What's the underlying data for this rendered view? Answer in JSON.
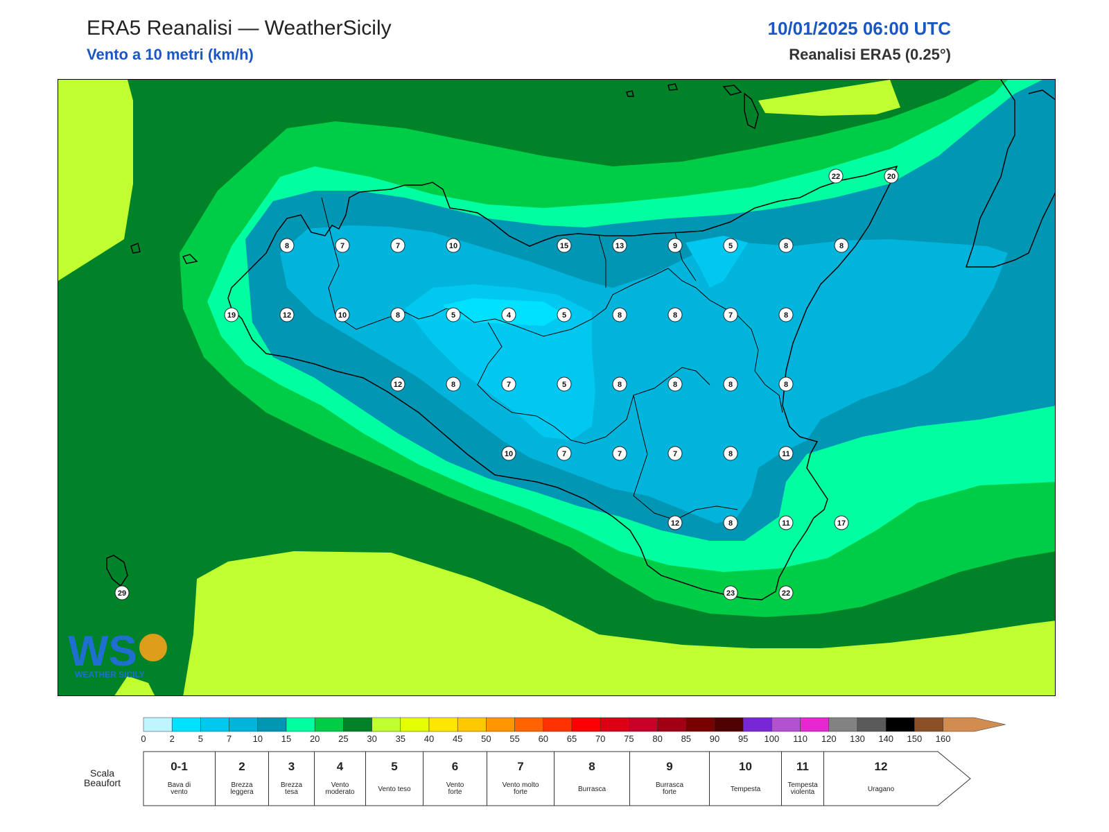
{
  "header": {
    "title": "ERA5 Reanalisi — WeatherSicily",
    "subtitle": "Vento a 10 metri (km/h)",
    "datetime": "10/01/2025 06:00 UTC",
    "source": "Reanalisi ERA5 (0.25°)"
  },
  "logo": {
    "text": "WEATHER SICILY",
    "letters": "WS"
  },
  "wind_values": [
    {
      "v": "22"
    },
    {
      "v": "20"
    },
    {
      "v": "8"
    },
    {
      "v": "7"
    },
    {
      "v": "7"
    },
    {
      "v": "10"
    },
    {
      "v": "15"
    },
    {
      "v": "13"
    },
    {
      "v": "9"
    },
    {
      "v": "5"
    },
    {
      "v": "8"
    },
    {
      "v": "8"
    },
    {
      "v": "19"
    },
    {
      "v": "12"
    },
    {
      "v": "10"
    },
    {
      "v": "8"
    },
    {
      "v": "5"
    },
    {
      "v": "4"
    },
    {
      "v": "5"
    },
    {
      "v": "8"
    },
    {
      "v": "8"
    },
    {
      "v": "7"
    },
    {
      "v": "8"
    },
    {
      "v": "12"
    },
    {
      "v": "8"
    },
    {
      "v": "7"
    },
    {
      "v": "5"
    },
    {
      "v": "8"
    },
    {
      "v": "8"
    },
    {
      "v": "8"
    },
    {
      "v": "8"
    },
    {
      "v": "10"
    },
    {
      "v": "7"
    },
    {
      "v": "7"
    },
    {
      "v": "7"
    },
    {
      "v": "8"
    },
    {
      "v": "11"
    },
    {
      "v": "12"
    },
    {
      "v": "8"
    },
    {
      "v": "11"
    },
    {
      "v": "17"
    },
    {
      "v": "29"
    },
    {
      "v": "23"
    },
    {
      "v": "22"
    }
  ],
  "colorbar": {
    "ticks": [
      "0",
      "2",
      "5",
      "7",
      "10",
      "15",
      "20",
      "25",
      "30",
      "35",
      "40",
      "45",
      "50",
      "55",
      "60",
      "65",
      "70",
      "75",
      "80",
      "85",
      "90",
      "95",
      "100",
      "110",
      "120",
      "130",
      "140",
      "150",
      "160"
    ],
    "colors": [
      "#bff5ff",
      "#00e0ff",
      "#00c8f0",
      "#00b4dc",
      "#0096b4",
      "#00ffa0",
      "#00cd46",
      "#008228",
      "#c0ff30",
      "#e6ff00",
      "#ffe600",
      "#ffc800",
      "#ff9600",
      "#ff6400",
      "#ff3200",
      "#ff0000",
      "#dc0014",
      "#c80028",
      "#a00014",
      "#780000",
      "#500000",
      "#7828d2",
      "#b450d2",
      "#e628d2",
      "#828282",
      "#5a5a5a",
      "#000000",
      "#8c5028",
      "#d28c50"
    ]
  },
  "beaufort": {
    "title_line1": "Scala",
    "title_line2": "Beaufort",
    "cells": [
      {
        "num": "0-1",
        "l1": "Bava di",
        "l2": "vento"
      },
      {
        "num": "2",
        "l1": "Brezza",
        "l2": "leggera"
      },
      {
        "num": "3",
        "l1": "Brezza",
        "l2": "tesa"
      },
      {
        "num": "4",
        "l1": "Vento",
        "l2": "moderato"
      },
      {
        "num": "5",
        "l1": "Vento teso",
        "l2": ""
      },
      {
        "num": "6",
        "l1": "Vento",
        "l2": "forte"
      },
      {
        "num": "7",
        "l1": "Vento molto",
        "l2": "forte"
      },
      {
        "num": "8",
        "l1": "Burrasca",
        "l2": ""
      },
      {
        "num": "9",
        "l1": "Burrasca",
        "l2": "forte"
      },
      {
        "num": "10",
        "l1": "Tempesta",
        "l2": ""
      },
      {
        "num": "11",
        "l1": "Tempesta",
        "l2": "violenta"
      },
      {
        "num": "12",
        "l1": "Uragano",
        "l2": ""
      }
    ]
  }
}
